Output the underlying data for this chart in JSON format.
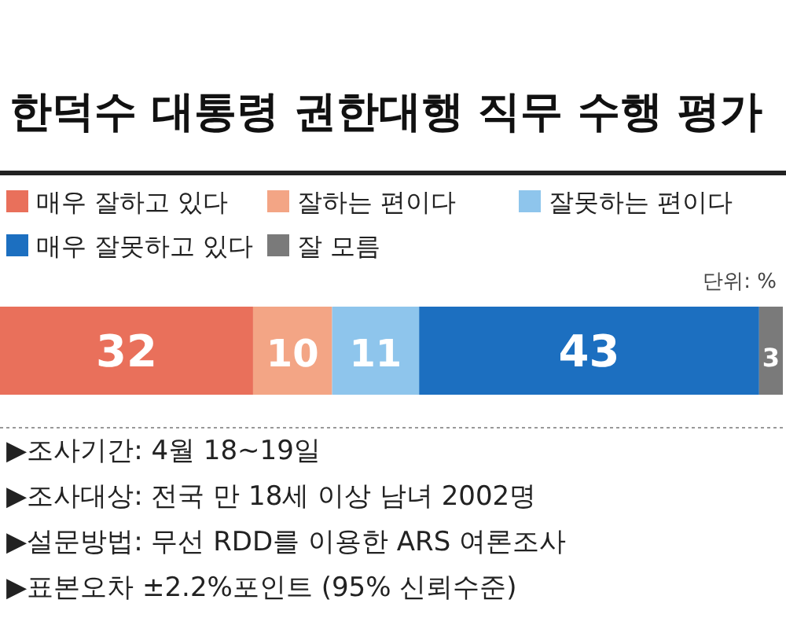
{
  "chart_data": {
    "type": "bar",
    "orientation": "horizontal",
    "stacked": true,
    "title": "한덕수 대통령 권한대행 직무 수행 평가",
    "categories": [
      null
    ],
    "series": [
      {
        "name": "매우 잘하고 있다",
        "color": "#e9705b",
        "values": [
          32
        ]
      },
      {
        "name": "잘하는 편이다",
        "color": "#f3a585",
        "values": [
          10
        ]
      },
      {
        "name": "잘못하는 편이다",
        "color": "#8ec5ec",
        "values": [
          11
        ]
      },
      {
        "name": "매우 잘못하고 있다",
        "color": "#1c6fc0",
        "values": [
          43
        ]
      },
      {
        "name": "잘 모름",
        "color": "#7a7a7a",
        "values": [
          3
        ]
      }
    ],
    "data_labels": true,
    "legend": "top",
    "annotations": [
      "단위: %",
      "▶조사기간: 4월 18~19일",
      "▶조사대상: 전국 만 18세 이상 남녀 2002명",
      "▶설문방법: 무선 RDD를 이용한 ARS 여론조사",
      "▶표본오차 ±2.2%포인트 (95% 신뢰수준)"
    ]
  }
}
